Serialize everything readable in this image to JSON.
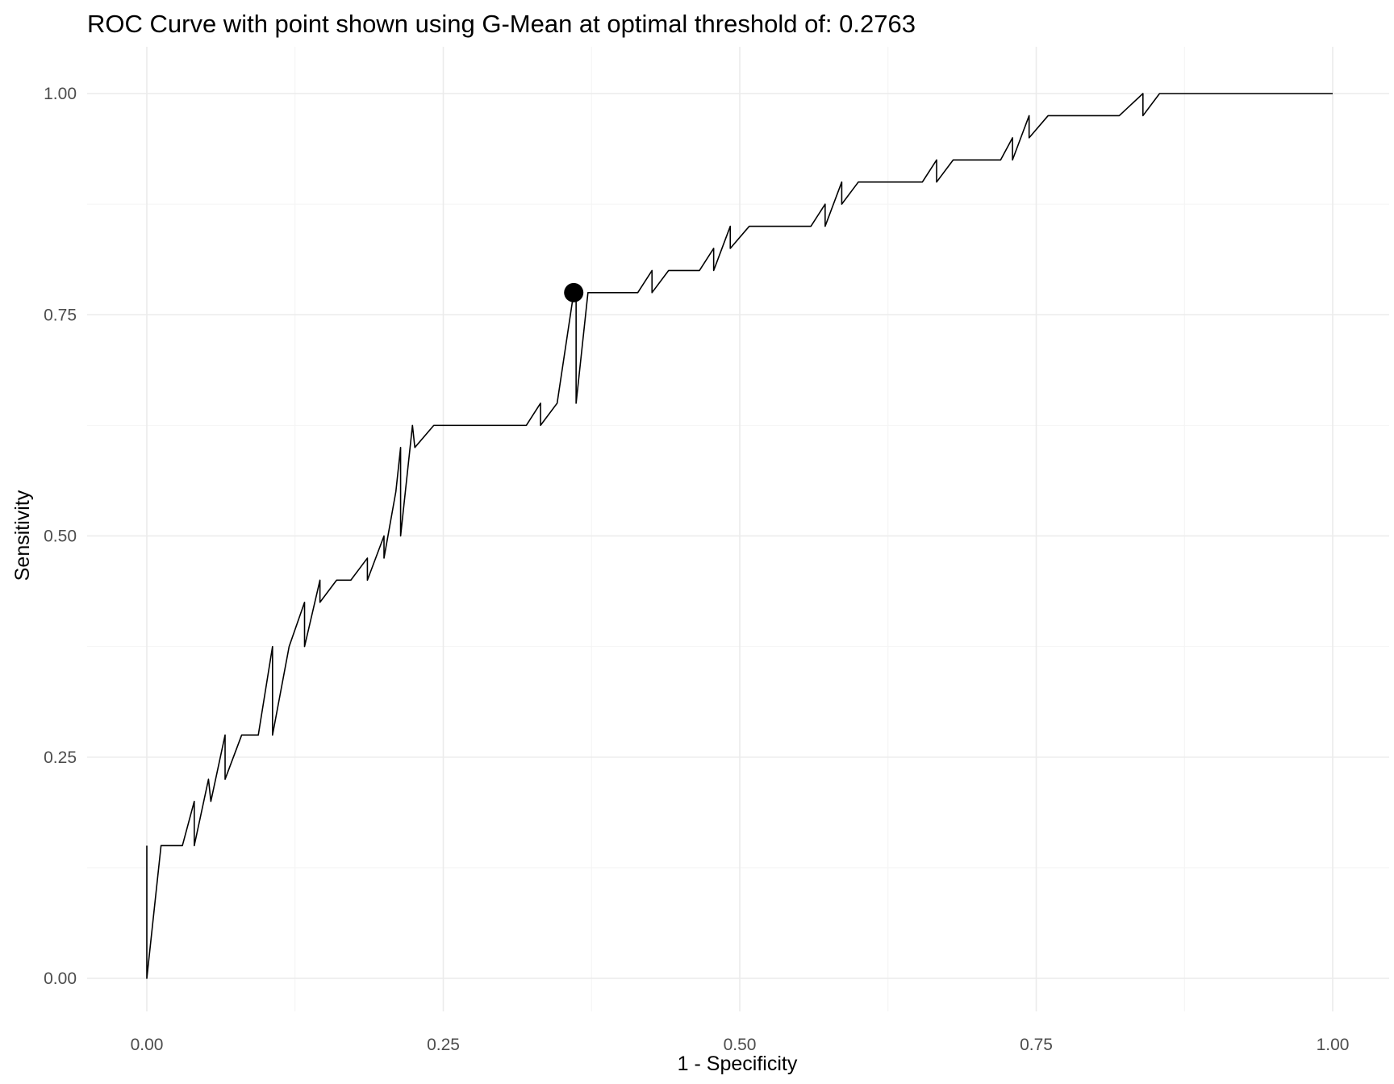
{
  "chart_data": {
    "type": "line",
    "title": "ROC Curve with point shown using G-Mean at optimal threshold of:  0.2763",
    "xlabel": "1 - Specificity",
    "ylabel": "Sensitivity",
    "xlim": [
      0,
      1
    ],
    "ylim": [
      0,
      1
    ],
    "x_ticks": [
      "0.00",
      "0.25",
      "0.50",
      "0.75",
      "1.00"
    ],
    "y_ticks": [
      "0.00",
      "0.25",
      "0.50",
      "0.75",
      "1.00"
    ],
    "grid": true,
    "legend": "none",
    "line_color": "#000000",
    "series": [
      {
        "x": [
          0.0,
          0.0,
          0.012,
          0.03,
          0.04,
          0.04,
          0.052,
          0.054,
          0.066,
          0.066,
          0.08,
          0.094,
          0.106,
          0.106,
          0.12,
          0.133,
          0.133,
          0.146,
          0.146,
          0.16,
          0.172,
          0.186,
          0.186,
          0.2,
          0.2,
          0.21,
          0.214,
          0.214,
          0.224,
          0.226,
          0.242,
          0.32,
          0.332,
          0.332,
          0.346,
          0.36,
          0.362,
          0.362,
          0.372,
          0.414,
          0.426,
          0.426,
          0.44,
          0.466,
          0.478,
          0.478,
          0.492,
          0.492,
          0.508,
          0.56,
          0.572,
          0.572,
          0.586,
          0.586,
          0.6,
          0.654,
          0.666,
          0.666,
          0.68,
          0.72,
          0.73,
          0.73,
          0.744,
          0.744,
          0.76,
          0.82,
          0.84,
          0.84,
          0.854,
          1.0
        ],
        "y": [
          0.15,
          0.0,
          0.15,
          0.15,
          0.2,
          0.15,
          0.225,
          0.2,
          0.275,
          0.225,
          0.275,
          0.275,
          0.375,
          0.275,
          0.375,
          0.425,
          0.375,
          0.45,
          0.425,
          0.45,
          0.45,
          0.475,
          0.45,
          0.5,
          0.475,
          0.55,
          0.6,
          0.5,
          0.625,
          0.6,
          0.625,
          0.625,
          0.65,
          0.625,
          0.65,
          0.775,
          0.775,
          0.65,
          0.775,
          0.775,
          0.8,
          0.775,
          0.8,
          0.8,
          0.825,
          0.8,
          0.85,
          0.825,
          0.85,
          0.85,
          0.875,
          0.85,
          0.9,
          0.875,
          0.9,
          0.9,
          0.925,
          0.9,
          0.925,
          0.925,
          0.95,
          0.925,
          0.975,
          0.95,
          0.975,
          0.975,
          1.0,
          0.975,
          1.0,
          1.0
        ]
      }
    ],
    "optimal_point": {
      "x": 0.36,
      "y": 0.775
    }
  }
}
